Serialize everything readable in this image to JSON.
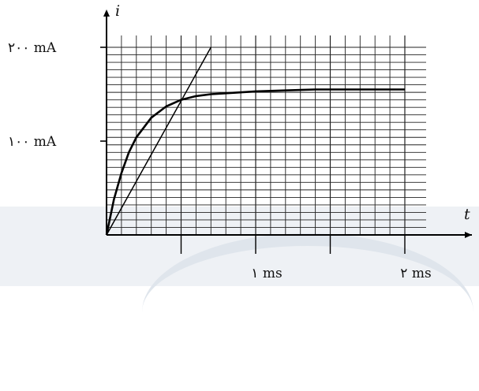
{
  "chart_data": {
    "type": "line",
    "title": "",
    "xlabel": "t",
    "ylabel": "i",
    "xlim": [
      0,
      2.1
    ],
    "ylim": [
      0,
      210
    ],
    "x_ticks": [
      {
        "value": 1,
        "label": "۱ ms"
      },
      {
        "value": 2,
        "label": "۲ ms"
      }
    ],
    "y_ticks": [
      {
        "value": 100,
        "label": "۱۰۰ mA"
      },
      {
        "value": 200,
        "label": "۲۰۰ mA"
      }
    ],
    "grid": true,
    "series": [
      {
        "style": "curve",
        "x": [
          0,
          0.05,
          0.1,
          0.15,
          0.2,
          0.3,
          0.4,
          0.5,
          0.6,
          0.7,
          0.8,
          1.0,
          1.2,
          1.4,
          1.6,
          1.8,
          2.0
        ],
        "y": [
          0,
          38,
          66,
          88,
          104,
          125,
          137,
          144,
          148,
          150,
          151,
          153,
          154,
          155,
          155,
          155,
          155
        ]
      },
      {
        "style": "tangent",
        "x": [
          0,
          0.7
        ],
        "y": [
          0,
          200
        ]
      }
    ]
  }
}
